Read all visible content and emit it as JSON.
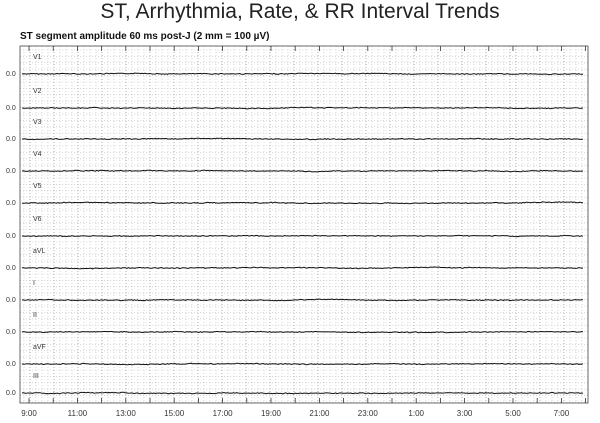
{
  "chart_data": {
    "type": "line",
    "title": "ST, Arrhythmia, Rate, & RR Interval Trends",
    "subtitle": "ST segment amplitude 60 ms post-J (2 mm = 100 µV)",
    "x_tick_labels": [
      "9:00",
      "11:00",
      "13:00",
      "15:00",
      "17:00",
      "19:00",
      "21:00",
      "23:00",
      "1:00",
      "3:00",
      "5:00",
      "7:00"
    ],
    "x_range": [
      "9:00",
      "8:00"
    ],
    "y_tick_label": "0.0",
    "grid": true,
    "series": [
      {
        "name": "V1",
        "values": [
          0,
          0,
          0,
          0,
          0,
          0,
          0,
          0,
          0,
          0,
          0,
          0,
          0,
          0,
          0,
          0,
          0,
          0,
          0,
          0,
          0,
          0,
          0,
          0
        ]
      },
      {
        "name": "V2",
        "values": [
          0,
          0,
          0,
          0,
          0,
          0,
          0,
          0,
          0,
          0,
          0,
          0,
          0,
          0,
          0,
          0,
          0,
          0,
          0,
          0,
          0,
          0,
          0,
          0
        ]
      },
      {
        "name": "V3",
        "values": [
          0,
          0,
          0,
          0,
          0,
          0,
          0,
          0,
          0,
          0,
          0,
          0,
          0,
          0,
          0,
          0,
          0,
          0,
          0,
          0,
          0,
          0,
          0,
          0
        ]
      },
      {
        "name": "V4",
        "values": [
          0,
          0,
          0,
          0,
          0,
          0,
          0,
          0,
          0,
          0,
          0,
          0,
          0,
          0,
          0,
          0,
          0,
          0,
          0,
          0,
          0,
          0,
          0,
          0
        ]
      },
      {
        "name": "V5",
        "values": [
          0,
          0,
          0,
          0,
          0,
          0,
          0,
          0,
          0,
          0,
          0,
          0,
          0,
          0,
          0,
          0,
          0,
          0,
          0,
          0,
          0,
          0,
          0,
          0
        ]
      },
      {
        "name": "V6",
        "values": [
          0,
          0,
          0,
          0,
          0,
          0,
          0,
          0,
          0,
          0,
          0,
          0,
          0,
          0,
          0,
          0,
          0,
          0,
          0,
          0,
          0,
          0,
          0,
          0
        ]
      },
      {
        "name": "aVL",
        "values": [
          0,
          0,
          0,
          0,
          0,
          0,
          0,
          0,
          0,
          0,
          0,
          0,
          0,
          0,
          0,
          0,
          0,
          0,
          0,
          0,
          0,
          0,
          0,
          0
        ]
      },
      {
        "name": "I",
        "values": [
          0,
          0,
          0,
          0,
          0,
          0,
          0,
          0,
          0,
          0,
          0,
          0,
          0,
          0,
          0,
          0,
          0,
          0,
          0,
          0,
          0,
          0,
          0,
          0
        ]
      },
      {
        "name": "II",
        "values": [
          0,
          0,
          0,
          0,
          0,
          0,
          0,
          0,
          0,
          0,
          0,
          0,
          0,
          0,
          0,
          0,
          0,
          0,
          0,
          0,
          0,
          0,
          0,
          0
        ]
      },
      {
        "name": "aVF",
        "values": [
          0,
          0,
          0,
          0,
          0,
          0,
          0,
          0,
          0,
          0,
          0,
          0,
          0,
          0,
          0,
          0,
          0,
          0,
          0,
          0,
          0,
          0,
          0,
          0
        ]
      },
      {
        "name": "III",
        "values": [
          0,
          0,
          0,
          0,
          0,
          0,
          0,
          0,
          0,
          0,
          0,
          0,
          0,
          0,
          0,
          0,
          0,
          0,
          0,
          0,
          0,
          0,
          0,
          0
        ]
      }
    ]
  }
}
